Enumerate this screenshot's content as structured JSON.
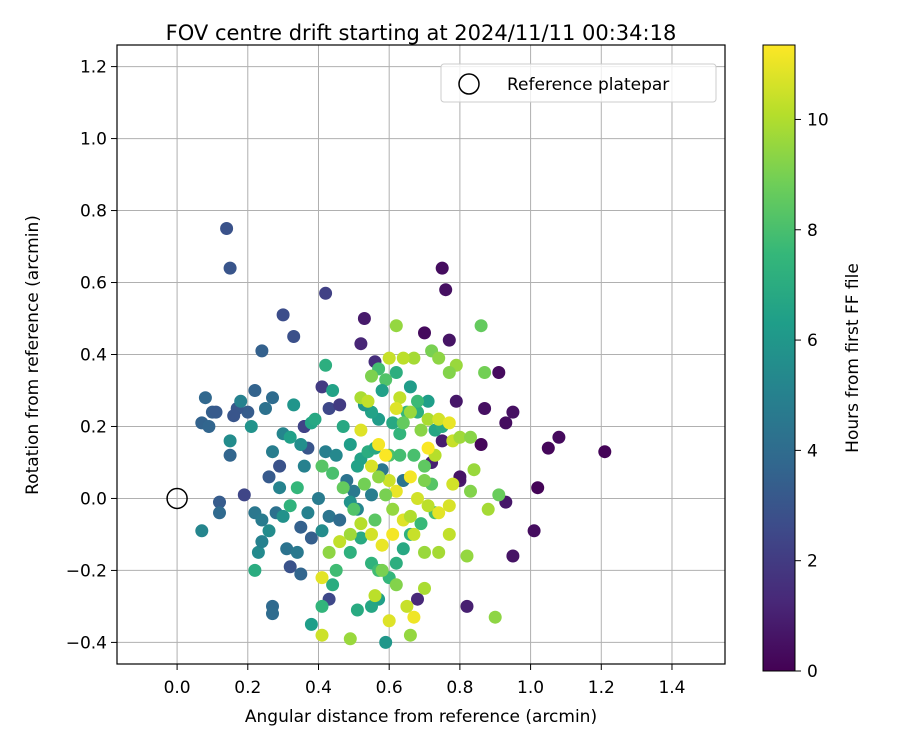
{
  "chart_data": {
    "type": "scatter",
    "title": "FOV centre drift starting at 2024/11/11 00:34:18",
    "xlabel": "Angular distance from reference (arcmin)",
    "ylabel": "Rotation from reference (arcmin)",
    "xlim": [
      -0.17,
      1.55
    ],
    "ylim": [
      -0.46,
      1.26
    ],
    "xticks": [
      "0.0",
      "0.2",
      "0.4",
      "0.6",
      "0.8",
      "1.0",
      "1.2",
      "1.4"
    ],
    "xtick_values": [
      0.0,
      0.2,
      0.4,
      0.6,
      0.8,
      1.0,
      1.2,
      1.4
    ],
    "yticks": [
      "−0.4",
      "−0.2",
      "0.0",
      "0.2",
      "0.4",
      "0.6",
      "0.8",
      "1.0",
      "1.2"
    ],
    "ytick_values": [
      -0.4,
      -0.2,
      0.0,
      0.2,
      0.4,
      0.6,
      0.8,
      1.0,
      1.2
    ],
    "grid": true,
    "legend": {
      "placement": "top-right",
      "entries": [
        "Reference platepar"
      ]
    },
    "reference_point": {
      "x": 0.0,
      "y": 0.0,
      "label": "Reference platepar",
      "marker": "open-circle"
    },
    "colorbar": {
      "label": "Hours from first FF file",
      "range": [
        0,
        11.35
      ],
      "ticks": [
        "0",
        "2",
        "4",
        "6",
        "8",
        "10"
      ],
      "tick_values": [
        0,
        2,
        4,
        6,
        8,
        10
      ],
      "colormap": "viridis"
    },
    "colormap_stops": [
      "#440154",
      "#482878",
      "#3e4989",
      "#31688e",
      "#26828e",
      "#1f9e89",
      "#35b779",
      "#6ece58",
      "#b5de2b",
      "#fde725"
    ],
    "points": [
      [
        1.21,
        0.13,
        0.1
      ],
      [
        1.08,
        0.17,
        0.3
      ],
      [
        1.05,
        0.14,
        0.2
      ],
      [
        1.02,
        0.03,
        0.1
      ],
      [
        1.01,
        -0.09,
        0.4
      ],
      [
        0.95,
        0.24,
        0.5
      ],
      [
        0.95,
        -0.16,
        0.6
      ],
      [
        0.93,
        0.21,
        0.4
      ],
      [
        0.93,
        -0.01,
        0.7
      ],
      [
        0.91,
        0.35,
        0.3
      ],
      [
        0.87,
        0.25,
        0.5
      ],
      [
        0.86,
        0.15,
        0.2
      ],
      [
        0.82,
        -0.3,
        1.0
      ],
      [
        0.77,
        0.44,
        0.6
      ],
      [
        0.76,
        0.58,
        0.5
      ],
      [
        0.75,
        0.64,
        0.4
      ],
      [
        0.7,
        0.46,
        0.3
      ],
      [
        0.53,
        0.5,
        0.8
      ],
      [
        0.52,
        0.43,
        1.2
      ],
      [
        0.56,
        0.38,
        1.5
      ],
      [
        0.8,
        0.05,
        0.8
      ],
      [
        0.72,
        0.1,
        1.0
      ],
      [
        0.75,
        0.16,
        0.9
      ],
      [
        0.68,
        -0.28,
        1.3
      ],
      [
        0.79,
        0.27,
        0.7
      ],
      [
        0.8,
        0.06,
        0.6
      ],
      [
        0.14,
        0.75,
        2.9
      ],
      [
        0.15,
        0.64,
        3.0
      ],
      [
        0.42,
        0.57,
        2.2
      ],
      [
        0.3,
        0.51,
        2.7
      ],
      [
        0.33,
        0.45,
        2.8
      ],
      [
        0.24,
        0.41,
        3.5
      ],
      [
        0.41,
        0.31,
        2.0
      ],
      [
        0.43,
        0.25,
        2.5
      ],
      [
        0.46,
        0.26,
        2.0
      ],
      [
        0.36,
        0.2,
        1.8
      ],
      [
        0.37,
        0.14,
        3.0
      ],
      [
        0.36,
        0.2,
        2.3
      ],
      [
        0.19,
        0.01,
        2.4
      ],
      [
        0.29,
        0.09,
        2.9
      ],
      [
        0.26,
        0.06,
        3.2
      ],
      [
        0.2,
        0.24,
        3.3
      ],
      [
        0.17,
        0.25,
        3.1
      ],
      [
        0.22,
        0.3,
        3.6
      ],
      [
        0.27,
        0.28,
        4.0
      ],
      [
        0.25,
        0.25,
        4.2
      ],
      [
        0.08,
        0.28,
        3.8
      ],
      [
        0.07,
        0.21,
        3.6
      ],
      [
        0.09,
        0.2,
        3.7
      ],
      [
        0.1,
        0.24,
        3.4
      ],
      [
        0.11,
        0.24,
        3.2
      ],
      [
        0.16,
        0.23,
        3.0
      ],
      [
        0.12,
        -0.01,
        3.3
      ],
      [
        0.12,
        -0.04,
        3.9
      ],
      [
        0.07,
        -0.09,
        5.2
      ],
      [
        0.15,
        0.12,
        3.7
      ],
      [
        0.27,
        -0.3,
        3.9
      ],
      [
        0.27,
        -0.32,
        4.0
      ],
      [
        0.35,
        -0.08,
        3.5
      ],
      [
        0.32,
        -0.19,
        2.9
      ],
      [
        0.35,
        -0.21,
        3.7
      ],
      [
        0.43,
        -0.28,
        2.5
      ],
      [
        0.38,
        -0.11,
        3.4
      ],
      [
        0.22,
        -0.04,
        4.5
      ],
      [
        0.24,
        -0.06,
        4.7
      ],
      [
        0.28,
        -0.04,
        4.2
      ],
      [
        0.31,
        -0.14,
        4.3
      ],
      [
        0.34,
        -0.15,
        4.6
      ],
      [
        0.23,
        -0.15,
        5.4
      ],
      [
        0.24,
        -0.12,
        5.0
      ],
      [
        0.21,
        0.2,
        5.8
      ],
      [
        0.15,
        0.16,
        5.5
      ],
      [
        0.18,
        0.27,
        5.0
      ],
      [
        0.27,
        0.13,
        4.8
      ],
      [
        0.3,
        0.18,
        5.2
      ],
      [
        0.33,
        0.26,
        5.9
      ],
      [
        0.32,
        0.17,
        6.4
      ],
      [
        0.35,
        0.15,
        5.6
      ],
      [
        0.36,
        0.09,
        5.0
      ],
      [
        0.4,
        0.0,
        4.7
      ],
      [
        0.43,
        -0.05,
        4.4
      ],
      [
        0.46,
        -0.06,
        4.0
      ],
      [
        0.42,
        0.13,
        4.9
      ],
      [
        0.45,
        0.12,
        5.3
      ],
      [
        0.48,
        0.05,
        4.3
      ],
      [
        0.5,
        0.02,
        4.6
      ],
      [
        0.26,
        -0.09,
        5.5
      ],
      [
        0.3,
        -0.05,
        5.7
      ],
      [
        0.29,
        0.03,
        5.1
      ],
      [
        0.37,
        -0.04,
        5.0
      ],
      [
        0.41,
        -0.09,
        5.5
      ],
      [
        0.49,
        -0.01,
        5.8
      ],
      [
        0.51,
        -0.03,
        5.2
      ],
      [
        0.55,
        0.01,
        4.8
      ],
      [
        0.58,
        0.08,
        4.5
      ],
      [
        0.64,
        0.05,
        4.4
      ],
      [
        0.22,
        -0.2,
        7.0
      ],
      [
        0.32,
        -0.02,
        7.3
      ],
      [
        0.34,
        0.03,
        7.5
      ],
      [
        0.38,
        0.21,
        6.6
      ],
      [
        0.39,
        0.22,
        6.8
      ],
      [
        0.42,
        0.37,
        7.1
      ],
      [
        0.44,
        0.3,
        6.5
      ],
      [
        0.47,
        0.2,
        6.8
      ],
      [
        0.49,
        0.15,
        6.3
      ],
      [
        0.52,
        0.11,
        6.5
      ],
      [
        0.54,
        0.13,
        7.0
      ],
      [
        0.57,
        0.22,
        6.2
      ],
      [
        0.61,
        0.21,
        6.8
      ],
      [
        0.63,
        0.18,
        7.4
      ],
      [
        0.65,
        0.24,
        7.6
      ],
      [
        0.68,
        0.24,
        7.1
      ],
      [
        0.71,
        0.27,
        6.3
      ],
      [
        0.73,
        0.19,
        6.7
      ],
      [
        0.75,
        0.2,
        6.9
      ],
      [
        0.57,
        0.36,
        7.9
      ],
      [
        0.59,
        0.33,
        8.2
      ],
      [
        0.62,
        0.35,
        7.1
      ],
      [
        0.66,
        0.31,
        6.2
      ],
      [
        0.68,
        0.27,
        7.7
      ],
      [
        0.58,
        0.3,
        6.4
      ],
      [
        0.55,
        0.24,
        6.5
      ],
      [
        0.53,
        0.26,
        6.0
      ],
      [
        0.56,
        0.14,
        6.8
      ],
      [
        0.51,
        0.09,
        6.5
      ],
      [
        0.59,
        -0.4,
        6.0
      ],
      [
        0.57,
        -0.28,
        6.4
      ],
      [
        0.55,
        -0.3,
        6.7
      ],
      [
        0.51,
        -0.31,
        6.9
      ],
      [
        0.44,
        -0.24,
        7.0
      ],
      [
        0.41,
        -0.3,
        7.4
      ],
      [
        0.38,
        -0.35,
        6.3
      ],
      [
        0.45,
        -0.2,
        7.8
      ],
      [
        0.49,
        -0.15,
        7.2
      ],
      [
        0.52,
        -0.11,
        6.9
      ],
      [
        0.55,
        -0.18,
        7.3
      ],
      [
        0.57,
        -0.2,
        7.8
      ],
      [
        0.6,
        -0.22,
        7.5
      ],
      [
        0.62,
        -0.18,
        7.1
      ],
      [
        0.64,
        -0.14,
        6.8
      ],
      [
        0.66,
        -0.1,
        7.2
      ],
      [
        0.69,
        -0.07,
        7.6
      ],
      [
        0.73,
        -0.04,
        7.9
      ],
      [
        0.6,
        0.12,
        8.1
      ],
      [
        0.63,
        0.12,
        7.9
      ],
      [
        0.7,
        0.09,
        8.5
      ],
      [
        0.72,
        0.04,
        8.3
      ],
      [
        0.67,
        0.12,
        8.0
      ],
      [
        0.86,
        0.48,
        8.6
      ],
      [
        0.62,
        0.48,
        9.5
      ],
      [
        0.72,
        0.41,
        9.0
      ],
      [
        0.74,
        0.39,
        9.4
      ],
      [
        0.79,
        0.37,
        9.6
      ],
      [
        0.77,
        0.35,
        9.2
      ],
      [
        0.67,
        0.39,
        9.8
      ],
      [
        0.64,
        0.39,
        10.2
      ],
      [
        0.6,
        0.39,
        10.4
      ],
      [
        0.55,
        0.34,
        9.1
      ],
      [
        0.63,
        0.28,
        10.3
      ],
      [
        0.62,
        0.25,
        10.8
      ],
      [
        0.66,
        0.24,
        9.6
      ],
      [
        0.71,
        0.22,
        9.9
      ],
      [
        0.74,
        0.22,
        10.6
      ],
      [
        0.77,
        0.21,
        11.0
      ],
      [
        0.78,
        0.16,
        10.4
      ],
      [
        0.8,
        0.17,
        9.7
      ],
      [
        0.83,
        0.17,
        9.3
      ],
      [
        0.87,
        0.35,
        8.9
      ],
      [
        0.52,
        0.28,
        9.9
      ],
      [
        0.54,
        0.27,
        10.3
      ],
      [
        0.52,
        0.19,
        10.8
      ],
      [
        0.57,
        0.15,
        11.2
      ],
      [
        0.59,
        0.12,
        11.3
      ],
      [
        0.55,
        0.09,
        10.7
      ],
      [
        0.6,
        0.05,
        10.5
      ],
      [
        0.62,
        0.02,
        11.0
      ],
      [
        0.66,
        0.06,
        11.2
      ],
      [
        0.68,
        0.0,
        10.6
      ],
      [
        0.71,
        -0.02,
        10.2
      ],
      [
        0.74,
        -0.04,
        10.9
      ],
      [
        0.77,
        -0.1,
        10.3
      ],
      [
        0.74,
        -0.15,
        9.8
      ],
      [
        0.7,
        -0.15,
        9.6
      ],
      [
        0.67,
        -0.1,
        10.4
      ],
      [
        0.64,
        -0.06,
        10.8
      ],
      [
        0.61,
        -0.1,
        11.2
      ],
      [
        0.58,
        -0.13,
        11.0
      ],
      [
        0.55,
        -0.1,
        10.6
      ],
      [
        0.52,
        -0.07,
        10.1
      ],
      [
        0.49,
        -0.1,
        9.7
      ],
      [
        0.46,
        -0.12,
        10.3
      ],
      [
        0.43,
        -0.15,
        9.4
      ],
      [
        0.41,
        -0.22,
        10.9
      ],
      [
        0.41,
        -0.38,
        10.5
      ],
      [
        0.49,
        -0.39,
        9.6
      ],
      [
        0.56,
        -0.27,
        10.2
      ],
      [
        0.6,
        -0.34,
        10.8
      ],
      [
        0.65,
        -0.3,
        10.4
      ],
      [
        0.67,
        -0.33,
        11.1
      ],
      [
        0.7,
        -0.25,
        9.9
      ],
      [
        0.66,
        -0.38,
        9.5
      ],
      [
        0.62,
        -0.24,
        9.2
      ],
      [
        0.58,
        -0.2,
        9.0
      ],
      [
        0.84,
        0.08,
        9.6
      ],
      [
        0.83,
        0.02,
        9.2
      ],
      [
        0.88,
        -0.03,
        9.8
      ],
      [
        0.9,
        -0.33,
        9.4
      ],
      [
        0.91,
        0.01,
        8.7
      ],
      [
        0.73,
        0.12,
        10.1
      ],
      [
        0.78,
        0.04,
        10.6
      ],
      [
        0.82,
        -0.16,
        9.5
      ],
      [
        0.77,
        -0.02,
        10.7
      ],
      [
        0.71,
        0.14,
        11.3
      ],
      [
        0.69,
        0.19,
        9.3
      ],
      [
        0.64,
        0.21,
        8.6
      ],
      [
        0.59,
        0.01,
        9.0
      ],
      [
        0.61,
        -0.03,
        9.5
      ],
      [
        0.66,
        -0.05,
        10.0
      ],
      [
        0.7,
        0.05,
        9.1
      ],
      [
        0.56,
        -0.06,
        8.4
      ],
      [
        0.5,
        -0.03,
        8.2
      ],
      [
        0.47,
        0.03,
        8.6
      ],
      [
        0.53,
        0.04,
        8.9
      ],
      [
        0.57,
        0.06,
        9.4
      ],
      [
        0.44,
        0.07,
        8.0
      ],
      [
        0.41,
        0.09,
        8.3
      ]
    ]
  }
}
